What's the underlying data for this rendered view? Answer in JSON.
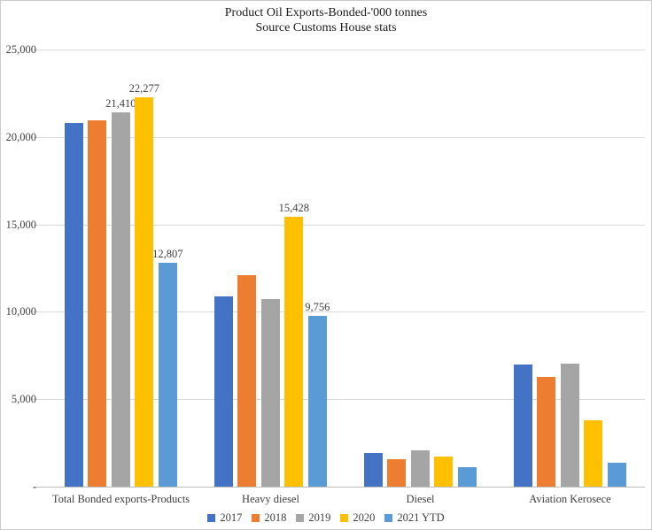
{
  "chart_data": {
    "type": "bar",
    "title": "Product Oil Exports-Bonded-'000 tonnes",
    "subtitle": "Source Customs House stats",
    "categories": [
      "Total Bonded exports-Products",
      "Heavy diesel",
      "Diesel",
      "Aviation Kerosece"
    ],
    "series": [
      {
        "name": "2017",
        "color": "#4472C4",
        "values": [
          20800,
          10900,
          1900,
          7000
        ],
        "shown_labels": [
          null,
          null,
          null,
          null
        ]
      },
      {
        "name": "2018",
        "color": "#ED7D31",
        "values": [
          20950,
          12100,
          1550,
          6300
        ],
        "shown_labels": [
          null,
          null,
          null,
          null
        ]
      },
      {
        "name": "2019",
        "color": "#A5A5A5",
        "values": [
          21410,
          10750,
          2050,
          7050
        ],
        "shown_labels": [
          "21,410",
          null,
          null,
          null
        ]
      },
      {
        "name": "2020",
        "color": "#FFC000",
        "values": [
          22277,
          15428,
          1700,
          3800
        ],
        "shown_labels": [
          "22,277",
          "15,428",
          null,
          null
        ]
      },
      {
        "name": "2021 YTD",
        "color": "#5B9BD5",
        "values": [
          12807,
          9756,
          1100,
          1350
        ],
        "shown_labels": [
          "12,807",
          "9,756",
          null,
          null
        ]
      }
    ],
    "ylim": [
      0,
      25000
    ],
    "ytick_interval": 5000,
    "ytick_labels": [
      "-",
      "5,000",
      "10,000",
      "15,000",
      "20,000",
      "25,000"
    ],
    "grid": true,
    "legend_position": "bottom",
    "colors": {
      "gridline": "#d9d9d9",
      "axis_line": "#bfbfbf",
      "text": "#3f3f3f",
      "title_text": "#1a1a1a",
      "background": "#ffffff"
    }
  }
}
